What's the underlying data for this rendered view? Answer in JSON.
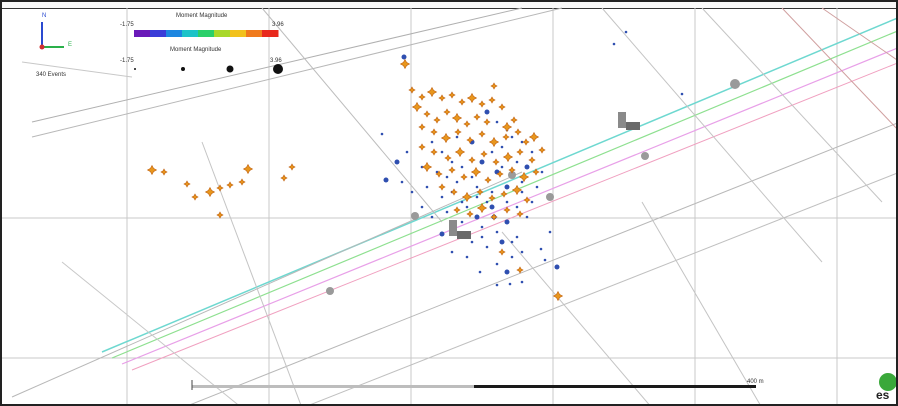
{
  "legend": {
    "mag_title_1": "Moment Magnitude",
    "mag_min_1": "-1.75",
    "mag_max_1": "3.96",
    "mag_title_2": "Moment Magnitude",
    "mag_min_2": "-1.75",
    "mag_max_2": "3.96",
    "event_count": "340 Events",
    "colorbar": [
      "#6a1ab8",
      "#3a3cd8",
      "#1c86e0",
      "#1cc3c8",
      "#2ad06a",
      "#a8d82a",
      "#f2c21c",
      "#f07a1c",
      "#e8281c"
    ]
  },
  "axes": {
    "north": "N",
    "east": "E"
  },
  "scale": {
    "end_label": "400 m"
  },
  "logo": {
    "text": "es"
  },
  "colors": {
    "event_blue": "#2f4fb0",
    "event_orange": "#e8961c",
    "station_gray": "#9a9a9a",
    "grid": "#c8c8c8"
  }
}
